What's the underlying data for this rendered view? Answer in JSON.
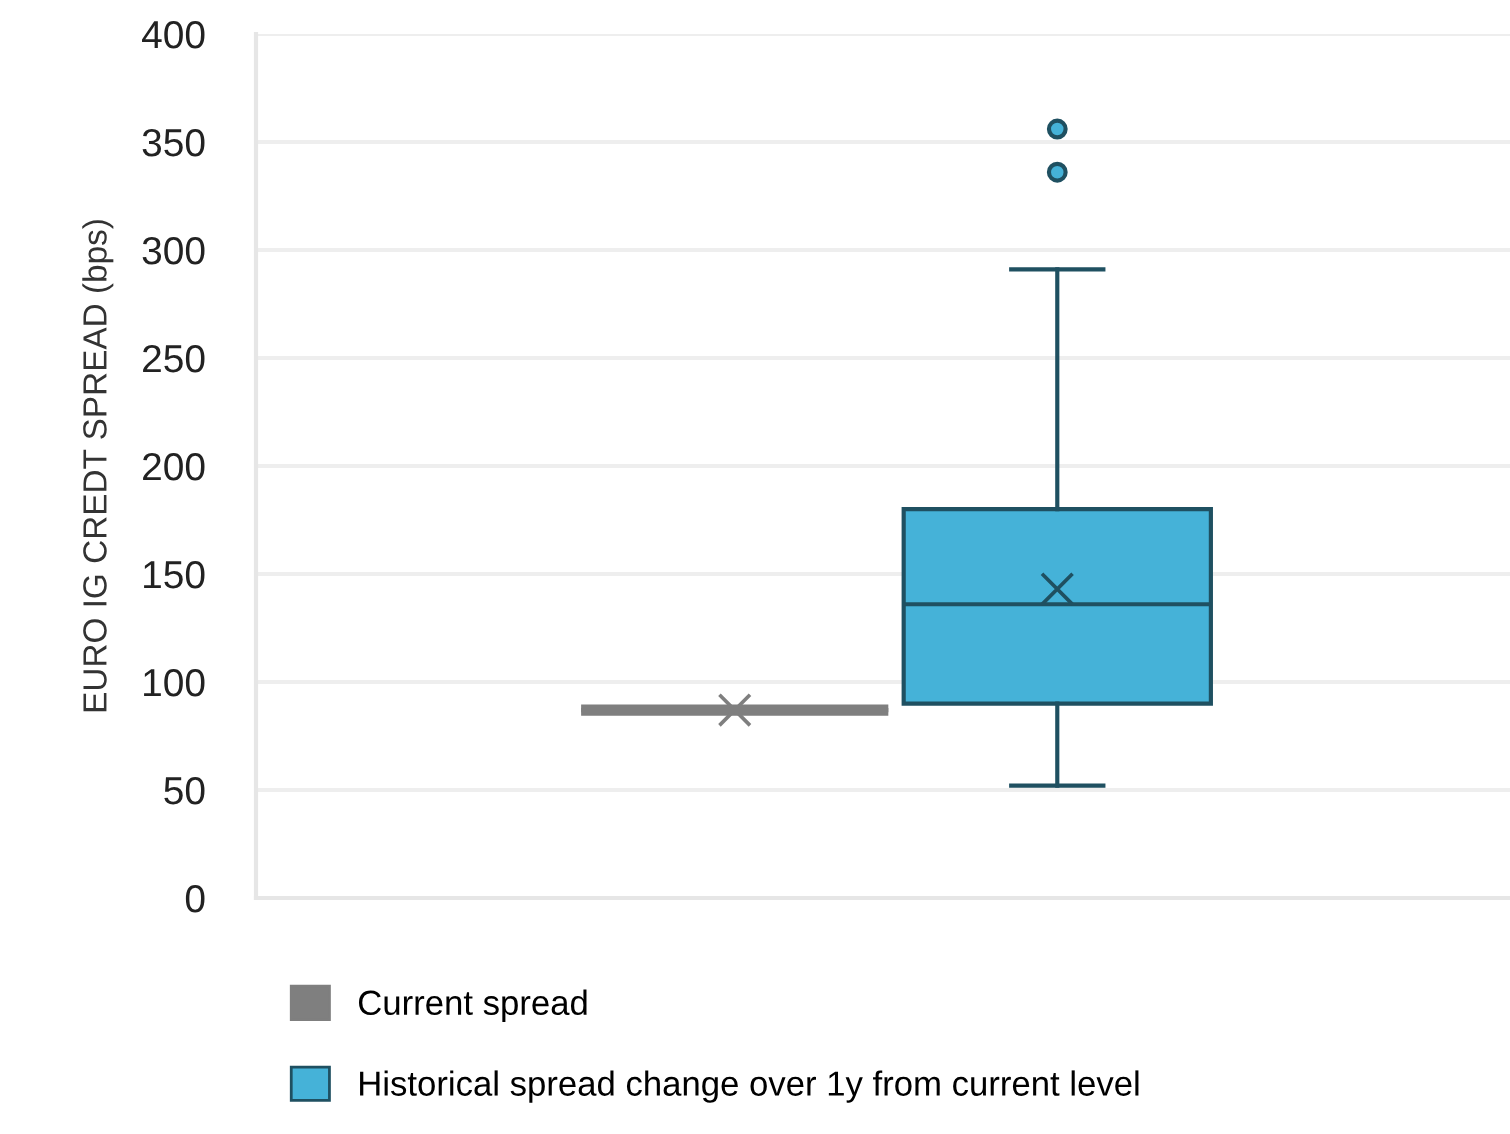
{
  "chart_data": {
    "type": "box",
    "ylabel": "EURO IG CREDT SPREAD (bps)",
    "categories": [
      null
    ],
    "series": [
      {
        "name": "Current spread",
        "color": "#7f7f7f",
        "boxes": [
          {
            "low": 87,
            "q1": 87,
            "median": 87,
            "q3": 87,
            "high": 87,
            "mean": 87
          }
        ]
      },
      {
        "name": "Historical spread change over 1y from current level",
        "color": "#45b2d8",
        "boxes": [
          {
            "low": 52,
            "q1": 90,
            "median": 136,
            "q3": 180,
            "high": 291,
            "mean": 143,
            "outliers": [
              336,
              356
            ]
          }
        ]
      }
    ],
    "ylim": [
      0,
      400
    ],
    "yticks": [
      0,
      50,
      100,
      150,
      200,
      250,
      300,
      350,
      400
    ],
    "grid": "y",
    "legend": "bottom",
    "tick_labels": "y",
    "marker": "cross"
  }
}
